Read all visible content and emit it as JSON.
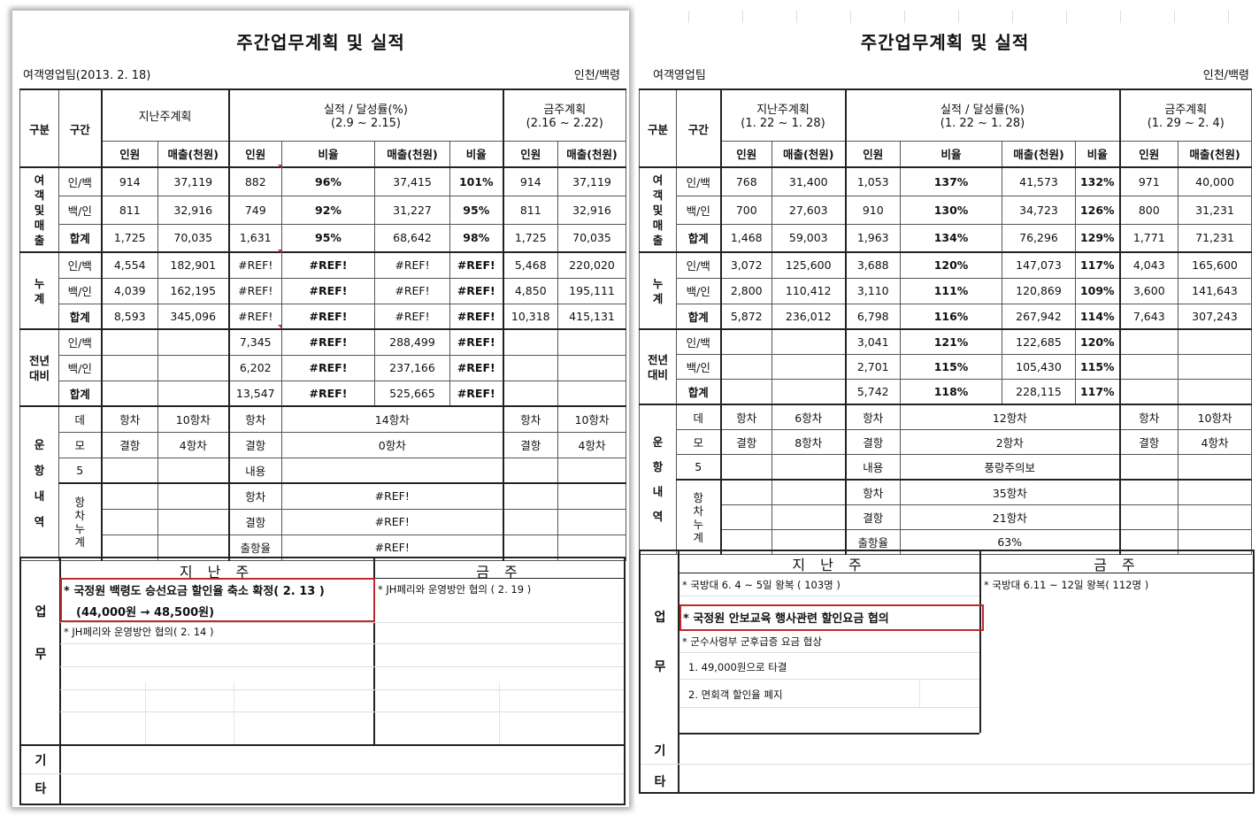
{
  "left": {
    "title": "주간업무계획 및 실적",
    "team": "여객영업팀(2013. 2. 18)",
    "route": "인천/백령",
    "head": {
      "gubun": "구분",
      "gugan": "구간",
      "last_plan": "지난주계획",
      "last_plan_range": "",
      "actual": "실적 / 달성률(%)",
      "actual_range": "(2.9 ~ 2.15)",
      "this_plan": "금주계획",
      "this_plan_range": "(2.16 ~ 2.22)",
      "sub": [
        "인원",
        "매출(천원)",
        "인원",
        "비율",
        "매출(천원)",
        "비율",
        "인원",
        "매출(천원)"
      ]
    },
    "groups": {
      "g1": "여객및매출",
      "g2": "누계",
      "g3": "전년대비",
      "g4": "운항내역"
    },
    "rows": [
      [
        "인/백",
        "914",
        "37,119",
        "882",
        "96%",
        "37,415",
        "101%",
        "914",
        "37,119"
      ],
      [
        "백/인",
        "811",
        "32,916",
        "749",
        "92%",
        "31,227",
        "95%",
        "811",
        "32,916"
      ],
      [
        "합계",
        "1,725",
        "70,035",
        "1,631",
        "95%",
        "68,642",
        "98%",
        "1,725",
        "70,035"
      ],
      [
        "인/백",
        "4,554",
        "182,901",
        "#REF!",
        "#REF!",
        "#REF!",
        "#REF!",
        "5,468",
        "220,020"
      ],
      [
        "백/인",
        "4,039",
        "162,195",
        "#REF!",
        "#REF!",
        "#REF!",
        "#REF!",
        "4,850",
        "195,111"
      ],
      [
        "합계",
        "8,593",
        "345,096",
        "#REF!",
        "#REF!",
        "#REF!",
        "#REF!",
        "10,318",
        "415,131"
      ],
      [
        "인/백",
        "",
        "",
        "7,345",
        "#REF!",
        "288,499",
        "#REF!",
        "",
        ""
      ],
      [
        "백/인",
        "",
        "",
        "6,202",
        "#REF!",
        "237,166",
        "#REF!",
        "",
        ""
      ],
      [
        "합계",
        "",
        "",
        "13,547",
        "#REF!",
        "525,665",
        "#REF!",
        "",
        ""
      ]
    ],
    "ops": {
      "ship": [
        "데",
        "모",
        "5"
      ],
      "cum": [
        "항",
        "차",
        "누",
        "계"
      ],
      "rows": [
        [
          "항차",
          "10항차",
          "항차",
          "14항차",
          "항차",
          "10항차"
        ],
        [
          "결항",
          "4항차",
          "결항",
          "0항차",
          "결항",
          "4항차"
        ],
        [
          "",
          "",
          "내용",
          "",
          "",
          ""
        ],
        [
          "",
          "",
          "항차",
          "#REF!",
          "",
          ""
        ],
        [
          "",
          "",
          "결항",
          "#REF!",
          "",
          ""
        ],
        [
          "",
          "",
          "출항율",
          "#REF!",
          "",
          ""
        ]
      ]
    },
    "work": {
      "last_week": "지 난 주",
      "this_week": "금 주",
      "label_work": [
        "업",
        "무"
      ],
      "label_etc": [
        "기",
        "타"
      ],
      "last_items": [
        "* 국정원 백령도 승선요금 할인율 축소 확정( 2. 13 )",
        "(44,000원 → 48,500원)",
        "* JH페리와 운영방안 협의( 2. 14 )"
      ],
      "this_items": [
        "* JH페리와 운영방안 협의 ( 2. 19 )"
      ]
    }
  },
  "right": {
    "title": "주간업무계획 및 실적",
    "team": "여객영업팀",
    "route": "인천/백령",
    "head": {
      "gubun": "구분",
      "gugan": "구간",
      "last_plan": "지난주계획",
      "last_plan_range": "(1. 22 ~ 1. 28)",
      "actual": "실적 / 달성률(%)",
      "actual_range": "(1. 22 ~ 1. 28)",
      "this_plan": "금주계획",
      "this_plan_range": "(1. 29 ~ 2. 4)",
      "sub": [
        "인원",
        "매출(천원)",
        "인원",
        "비율",
        "매출(천원)",
        "비율",
        "인원",
        "매출(천원)"
      ]
    },
    "groups": {
      "g1": "여객및매출",
      "g2": "누계",
      "g3": "전년대비",
      "g4": "운항내역"
    },
    "rows": [
      [
        "인/백",
        "768",
        "31,400",
        "1,053",
        "137%",
        "41,573",
        "132%",
        "971",
        "40,000"
      ],
      [
        "백/인",
        "700",
        "27,603",
        "910",
        "130%",
        "34,723",
        "126%",
        "800",
        "31,231"
      ],
      [
        "합계",
        "1,468",
        "59,003",
        "1,963",
        "134%",
        "76,296",
        "129%",
        "1,771",
        "71,231"
      ],
      [
        "인/백",
        "3,072",
        "125,600",
        "3,688",
        "120%",
        "147,073",
        "117%",
        "4,043",
        "165,600"
      ],
      [
        "백/인",
        "2,800",
        "110,412",
        "3,110",
        "111%",
        "120,869",
        "109%",
        "3,600",
        "141,643"
      ],
      [
        "합계",
        "5,872",
        "236,012",
        "6,798",
        "116%",
        "267,942",
        "114%",
        "7,643",
        "307,243"
      ],
      [
        "인/백",
        "",
        "",
        "3,041",
        "121%",
        "122,685",
        "120%",
        "",
        ""
      ],
      [
        "백/인",
        "",
        "",
        "2,701",
        "115%",
        "105,430",
        "115%",
        "",
        ""
      ],
      [
        "합계",
        "",
        "",
        "5,742",
        "118%",
        "228,115",
        "117%",
        "",
        ""
      ]
    ],
    "ops": {
      "ship": [
        "데",
        "모",
        "5"
      ],
      "cum": [
        "항",
        "차",
        "누",
        "계"
      ],
      "rows": [
        [
          "항차",
          "6항차",
          "항차",
          "12항차",
          "항차",
          "10항차"
        ],
        [
          "결항",
          "8항차",
          "결항",
          "2항차",
          "결항",
          "4항차"
        ],
        [
          "",
          "",
          "내용",
          "풍랑주의보",
          "",
          ""
        ],
        [
          "",
          "",
          "항차",
          "35항차",
          "",
          ""
        ],
        [
          "",
          "",
          "결항",
          "21항차",
          "",
          ""
        ],
        [
          "",
          "",
          "출항율",
          "63%",
          "",
          ""
        ]
      ]
    },
    "work": {
      "last_week": "지 난 주",
      "this_week": "금 주",
      "label_work": [
        "업",
        "무"
      ],
      "label_etc": [
        "기",
        "타"
      ],
      "last_items": [
        "* 국방대 6. 4 ~ 5일 왕복 ( 103명 )",
        "* 국정원 안보교육 행사관련 할인요금 협의",
        "* 군수사령부 군후급증 요금 협상",
        "1. 49,000원으로 타결",
        "2. 면회객 할인율 폐지"
      ],
      "this_items": [
        "* 국방대 6.11 ~ 12일 왕복( 112명 )"
      ]
    }
  }
}
